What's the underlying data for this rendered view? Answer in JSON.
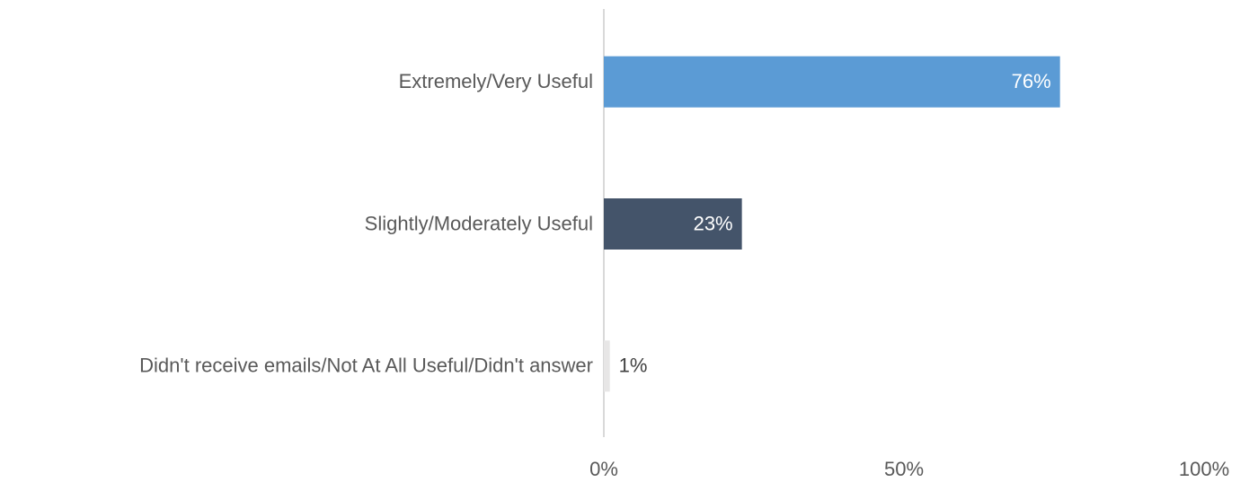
{
  "chart_data": {
    "type": "bar",
    "orientation": "horizontal",
    "categories": [
      "Extremely/Very Useful",
      "Slightly/Moderately Useful",
      "Didn't receive emails/Not At All Useful/Didn't answer"
    ],
    "values": [
      76,
      23,
      1
    ],
    "value_labels": [
      "76%",
      "23%",
      "1%"
    ],
    "colors": [
      "#5b9bd5",
      "#44546a",
      "#e7e6e6"
    ],
    "xlim": [
      0,
      100
    ],
    "xticks": [
      {
        "value": 0,
        "label": "0%"
      },
      {
        "value": 50,
        "label": "50%"
      },
      {
        "value": 100,
        "label": "100%"
      }
    ],
    "grid": false
  }
}
